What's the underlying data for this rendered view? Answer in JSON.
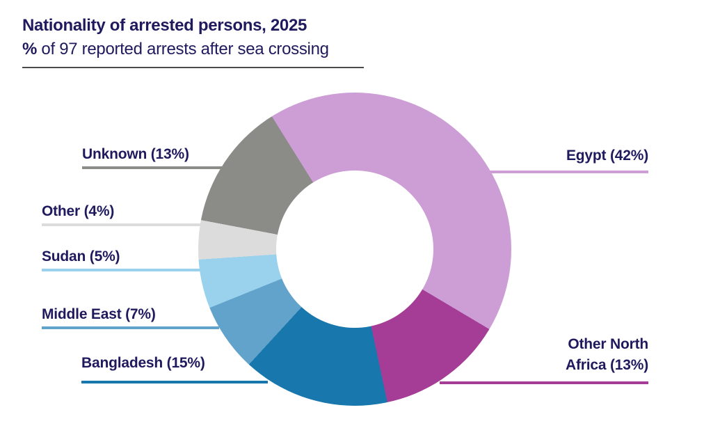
{
  "header": {
    "title": "Nationality of arrested persons, 2025",
    "subtitle_prefix": "%",
    "subtitle_rest": " of 97 reported arrests after sea crossing"
  },
  "chart_data": {
    "type": "pie",
    "variant": "donut",
    "title": "Nationality of arrested persons, 2025",
    "subtitle": "% of 97 reported arrests after sea crossing",
    "total_reported_arrests": 97,
    "unit": "%",
    "start_angle_deg": -32,
    "legend_position": "callout-labels",
    "text_color": "#1f1a5e",
    "segments": [
      {
        "name": "Egypt",
        "value": 42,
        "label": "Egypt (42%)",
        "color": "#cd9ed6"
      },
      {
        "name": "Other North Africa",
        "value": 13,
        "label": "Other North Africa (13%)",
        "color": "#a53c96"
      },
      {
        "name": "Bangladesh",
        "value": 15,
        "label": "Bangladesh (15%)",
        "color": "#1878ae"
      },
      {
        "name": "Middle East",
        "value": 7,
        "label": "Middle East (7%)",
        "color": "#62a3cb"
      },
      {
        "name": "Sudan",
        "value": 5,
        "label": "Sudan (5%)",
        "color": "#9ad2ee"
      },
      {
        "name": "Other",
        "value": 4,
        "label": "Other (4%)",
        "color": "#dcdcdc"
      },
      {
        "name": "Unknown",
        "value": 13,
        "label": "Unknown (13%)",
        "color": "#8b8b87"
      }
    ]
  }
}
